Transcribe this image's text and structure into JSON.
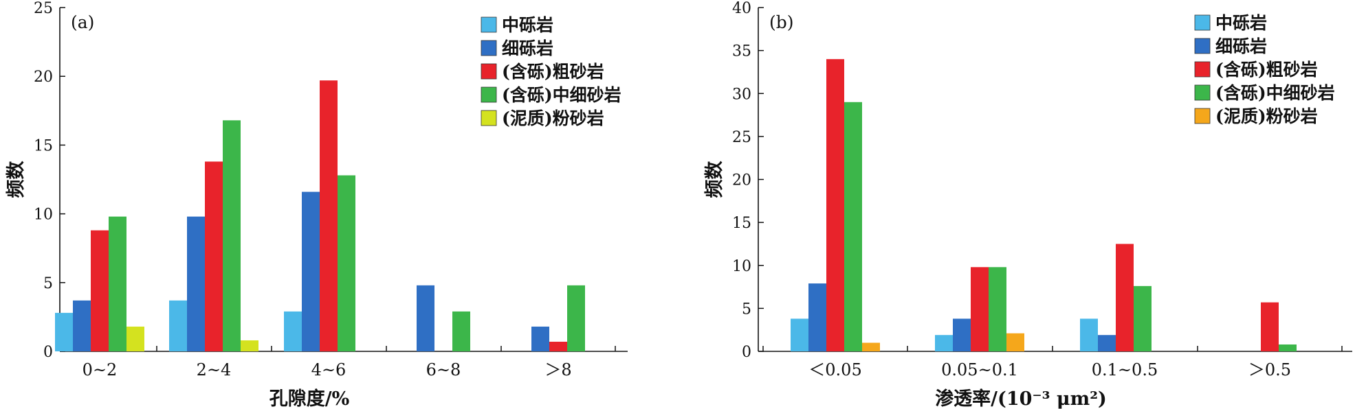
{
  "colors": {
    "zhong_li_yan": "#4bb8e8",
    "xi_li_yan": "#2f6fc4",
    "cu_sha_yan": "#e8232b",
    "zhong_xi_sha_yan": "#3cb64a",
    "fen_sha_yan_a": "#d4e21f",
    "fen_sha_yan_b": "#f5a71b"
  },
  "chart_data": [
    {
      "type": "bar",
      "panel_label": "(a)",
      "xlabel": "孔隙度/%",
      "ylabel": "频数",
      "ylim": [
        0,
        25
      ],
      "yticks": [
        0,
        5,
        10,
        15,
        20,
        25
      ],
      "categories": [
        "0~2",
        "2~4",
        "4~6",
        "6~8",
        "＞8"
      ],
      "legend_position": "top-right",
      "series": [
        {
          "name": "中砾岩",
          "color_key": "zhong_li_yan",
          "values": [
            2.8,
            3.7,
            2.9,
            0,
            0
          ]
        },
        {
          "name": "细砾岩",
          "color_key": "xi_li_yan",
          "values": [
            3.7,
            9.8,
            11.6,
            4.8,
            1.8
          ]
        },
        {
          "name": "(含砾)粗砂岩",
          "color_key": "cu_sha_yan",
          "values": [
            8.8,
            13.8,
            19.7,
            0,
            0.7
          ]
        },
        {
          "name": "(含砾)中细砂岩",
          "color_key": "zhong_xi_sha_yan",
          "values": [
            9.8,
            16.8,
            12.8,
            2.9,
            4.8
          ]
        },
        {
          "name": "(泥质)粉砂岩",
          "color_key": "fen_sha_yan_a",
          "values": [
            1.8,
            0.8,
            0,
            0,
            0
          ]
        }
      ]
    },
    {
      "type": "bar",
      "panel_label": "(b)",
      "xlabel": "渗透率/(10⁻³ μm²)",
      "ylabel": "频数",
      "ylim": [
        0,
        40
      ],
      "yticks": [
        0,
        5,
        10,
        15,
        20,
        25,
        30,
        35,
        40
      ],
      "categories": [
        "＜0.05",
        "0.05~0.1",
        "0.1~0.5",
        "＞0.5"
      ],
      "legend_position": "top-right",
      "series": [
        {
          "name": "中砾岩",
          "color_key": "zhong_li_yan",
          "values": [
            3.8,
            1.9,
            3.8,
            0
          ]
        },
        {
          "name": "细砾岩",
          "color_key": "xi_li_yan",
          "values": [
            7.9,
            3.8,
            1.9,
            0
          ]
        },
        {
          "name": "(含砾)粗砂岩",
          "color_key": "cu_sha_yan",
          "values": [
            34,
            9.8,
            12.5,
            5.7
          ]
        },
        {
          "name": "(含砾)中细砂岩",
          "color_key": "zhong_xi_sha_yan",
          "values": [
            29,
            9.8,
            7.6,
            0.8
          ]
        },
        {
          "name": "(泥质)粉砂岩",
          "color_key": "fen_sha_yan_b",
          "values": [
            1.0,
            2.1,
            0,
            0
          ]
        }
      ]
    }
  ]
}
